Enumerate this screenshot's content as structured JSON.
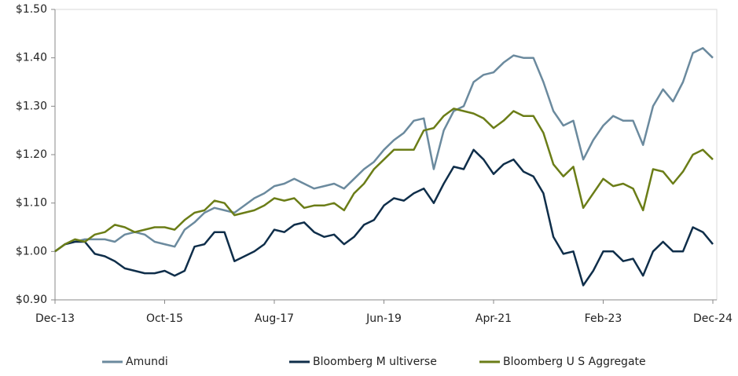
{
  "chart_data": {
    "type": "line",
    "categories": [
      "Dec-13",
      null,
      null,
      null,
      null,
      null,
      null,
      null,
      null,
      null,
      null,
      "Oct-15",
      null,
      null,
      null,
      null,
      null,
      null,
      null,
      null,
      null,
      null,
      "Aug-17",
      null,
      null,
      null,
      null,
      null,
      null,
      null,
      null,
      null,
      null,
      "Jun-19",
      null,
      null,
      null,
      null,
      null,
      null,
      null,
      null,
      null,
      null,
      "Apr-21",
      null,
      null,
      null,
      null,
      null,
      null,
      null,
      null,
      null,
      null,
      "Feb-23",
      null,
      null,
      null,
      null,
      null,
      null,
      null,
      null,
      null,
      null,
      "Dec-24"
    ],
    "series": [
      {
        "name": "Amundi",
        "color": "#6b8a9e",
        "values": [
          1.0,
          1.015,
          1.02,
          1.025,
          1.025,
          1.025,
          1.02,
          1.035,
          1.04,
          1.035,
          1.02,
          1.015,
          1.01,
          1.045,
          1.06,
          1.08,
          1.09,
          1.085,
          1.08,
          1.095,
          1.11,
          1.12,
          1.135,
          1.14,
          1.15,
          1.14,
          1.13,
          1.135,
          1.14,
          1.13,
          1.15,
          1.17,
          1.185,
          1.21,
          1.23,
          1.245,
          1.27,
          1.275,
          1.17,
          1.25,
          1.29,
          1.3,
          1.35,
          1.365,
          1.37,
          1.39,
          1.405,
          1.4,
          1.4,
          1.35,
          1.29,
          1.26,
          1.27,
          1.19,
          1.23,
          1.26,
          1.28,
          1.27,
          1.27,
          1.22,
          1.3,
          1.335,
          1.31,
          1.35,
          1.41,
          1.42,
          1.4
        ]
      },
      {
        "name": "Bloomberg M ultiverse",
        "color": "#0f2e4a",
        "values": [
          1.0,
          1.015,
          1.02,
          1.02,
          0.995,
          0.99,
          0.98,
          0.965,
          0.96,
          0.955,
          0.955,
          0.96,
          0.95,
          0.96,
          1.01,
          1.015,
          1.04,
          1.04,
          0.98,
          0.99,
          1.0,
          1.015,
          1.045,
          1.04,
          1.055,
          1.06,
          1.04,
          1.03,
          1.035,
          1.015,
          1.03,
          1.055,
          1.065,
          1.095,
          1.11,
          1.105,
          1.12,
          1.13,
          1.1,
          1.14,
          1.175,
          1.17,
          1.21,
          1.19,
          1.16,
          1.18,
          1.19,
          1.165,
          1.155,
          1.12,
          1.03,
          0.995,
          1.0,
          0.93,
          0.96,
          1.0,
          1.0,
          0.98,
          0.985,
          0.95,
          1.0,
          1.02,
          1.0,
          1.0,
          1.05,
          1.04,
          1.015
        ]
      },
      {
        "name": "Bloomberg U S Aggregate",
        "color": "#6b7d17",
        "values": [
          1.0,
          1.015,
          1.025,
          1.02,
          1.035,
          1.04,
          1.055,
          1.05,
          1.04,
          1.045,
          1.05,
          1.05,
          1.045,
          1.065,
          1.08,
          1.085,
          1.105,
          1.1,
          1.075,
          1.08,
          1.085,
          1.095,
          1.11,
          1.105,
          1.11,
          1.09,
          1.095,
          1.095,
          1.1,
          1.085,
          1.12,
          1.14,
          1.17,
          1.19,
          1.21,
          1.21,
          1.21,
          1.25,
          1.255,
          1.28,
          1.295,
          1.29,
          1.285,
          1.275,
          1.255,
          1.27,
          1.29,
          1.28,
          1.28,
          1.245,
          1.18,
          1.155,
          1.175,
          1.09,
          1.12,
          1.15,
          1.135,
          1.14,
          1.13,
          1.085,
          1.17,
          1.165,
          1.14,
          1.165,
          1.2,
          1.21,
          1.19
        ]
      }
    ],
    "ylim": [
      0.9,
      1.5
    ],
    "yticks": [
      {
        "value": 0.9,
        "label": "$0.90"
      },
      {
        "value": 1.0,
        "label": "$1.00"
      },
      {
        "value": 1.1,
        "label": "$1.10"
      },
      {
        "value": 1.2,
        "label": "$1.20"
      },
      {
        "value": 1.3,
        "label": "$1.30"
      },
      {
        "value": 1.4,
        "label": "$1.40"
      },
      {
        "value": 1.5,
        "label": "$1.50"
      }
    ],
    "grid": false,
    "legend": "bottom"
  }
}
